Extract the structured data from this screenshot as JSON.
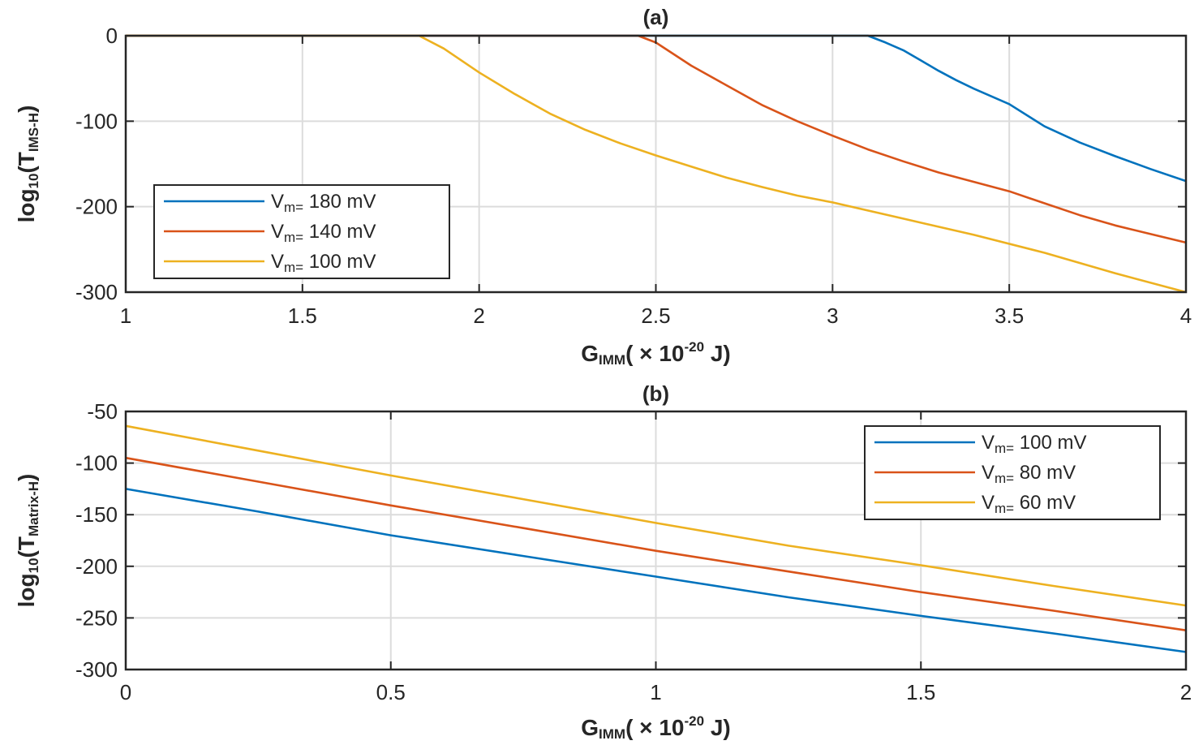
{
  "chart_data": [
    {
      "id": "a",
      "type": "line",
      "title": "(a)",
      "xlabel": {
        "main": "G",
        "sub": "IMM",
        "suffix": "( × 10",
        "exp": "-20",
        "unit": " J)"
      },
      "ylabel": {
        "prefix": "log",
        "sub10": "10",
        "mid": "(T",
        "sub": "IMS-H",
        "suffix": ")"
      },
      "xlim": [
        1,
        4
      ],
      "ylim": [
        -300,
        0
      ],
      "xticks": [
        1,
        1.5,
        2,
        2.5,
        3,
        3.5,
        4
      ],
      "xtick_labels": [
        "1",
        "1.5",
        "2",
        "2.5",
        "3",
        "3.5",
        "4"
      ],
      "yticks": [
        0,
        -100,
        -200,
        -300
      ],
      "ytick_labels": [
        "0",
        "-100",
        "-200",
        "-300"
      ],
      "grid": true,
      "legend_position": "lower-left",
      "series": [
        {
          "name": "V",
          "legend_sub": "m=",
          "legend_value": "180  mV",
          "color": "#0072BD",
          "x": [
            1,
            3.1,
            3.15,
            3.2,
            3.25,
            3.3,
            3.35,
            3.4,
            3.5,
            3.6,
            3.7,
            3.8,
            3.9,
            4
          ],
          "y": [
            0,
            0,
            -8,
            -17,
            -29,
            -41,
            -52,
            -62,
            -80,
            -106,
            -125,
            -141,
            -156,
            -170
          ]
        },
        {
          "name": "V",
          "legend_sub": "m=",
          "legend_value": "140  mV",
          "color": "#D95319",
          "x": [
            1,
            2.45,
            2.5,
            2.6,
            2.7,
            2.8,
            2.9,
            3.0,
            3.1,
            3.2,
            3.3,
            3.4,
            3.5,
            3.6,
            3.7,
            3.8,
            3.9,
            4
          ],
          "y": [
            0,
            0,
            -8,
            -35,
            -58,
            -81,
            -100,
            -117,
            -133,
            -147,
            -160,
            -171,
            -182,
            -196,
            -210,
            -222,
            -232,
            -242
          ]
        },
        {
          "name": "V",
          "legend_sub": "m=",
          "legend_value": "100  mV",
          "color": "#EDB120",
          "x": [
            1,
            1.83,
            1.9,
            2.0,
            2.1,
            2.2,
            2.3,
            2.4,
            2.5,
            2.6,
            2.7,
            2.8,
            2.9,
            3.0,
            3.2,
            3.4,
            3.6,
            3.8,
            4
          ],
          "y": [
            0,
            0,
            -15,
            -43,
            -68,
            -91,
            -110,
            -126,
            -140,
            -153,
            -166,
            -177,
            -187,
            -195,
            -214,
            -233,
            -254,
            -278,
            -300
          ]
        }
      ]
    },
    {
      "id": "b",
      "type": "line",
      "title": "(b)",
      "xlabel": {
        "main": "G",
        "sub": "IMM",
        "suffix": "( × 10",
        "exp": "-20",
        "unit": " J)"
      },
      "ylabel": {
        "prefix": "log",
        "sub10": "10",
        "mid": "(T",
        "sub": "Matrix-H",
        "suffix": ")"
      },
      "xlim": [
        0,
        2
      ],
      "ylim": [
        -300,
        -50
      ],
      "xticks": [
        0,
        0.5,
        1,
        1.5,
        2
      ],
      "xtick_labels": [
        "0",
        "0.5",
        "1",
        "1.5",
        "2"
      ],
      "yticks": [
        -50,
        -100,
        -150,
        -200,
        -250,
        -300
      ],
      "ytick_labels": [
        "-50",
        "-100",
        "-150",
        "-200",
        "-250",
        "-300"
      ],
      "grid": true,
      "legend_position": "top-right",
      "series": [
        {
          "name": "V",
          "legend_sub": "m=",
          "legend_value": "100  mV",
          "color": "#0072BD",
          "x": [
            0,
            0.25,
            0.5,
            0.75,
            1.0,
            1.25,
            1.5,
            1.75,
            2.0
          ],
          "y": [
            -125,
            -147,
            -170,
            -190,
            -210,
            -230,
            -248,
            -265,
            -283
          ]
        },
        {
          "name": "V",
          "legend_sub": "m=",
          "legend_value": "80  mV",
          "color": "#D95319",
          "x": [
            0,
            0.25,
            0.5,
            0.75,
            1.0,
            1.25,
            1.5,
            1.75,
            2.0
          ],
          "y": [
            -95,
            -118,
            -141,
            -163,
            -185,
            -205,
            -225,
            -243,
            -262
          ]
        },
        {
          "name": "V",
          "legend_sub": "m=",
          "legend_value": "60  mV",
          "color": "#EDB120",
          "x": [
            0,
            0.25,
            0.5,
            0.75,
            1.0,
            1.25,
            1.5,
            1.75,
            2.0
          ],
          "y": [
            -64,
            -88,
            -112,
            -135,
            -158,
            -180,
            -199,
            -219,
            -238
          ]
        }
      ]
    }
  ]
}
